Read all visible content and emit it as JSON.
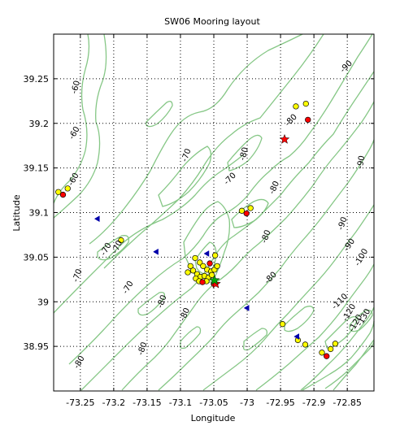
{
  "chart_data": {
    "type": "scatter",
    "title": "SW06 Mooring layout",
    "xlabel": "Longitude",
    "ylabel": "Latitude",
    "xlim": [
      -73.29,
      -72.81
    ],
    "ylim": [
      38.9,
      39.3
    ],
    "grid": true,
    "x_ticks": [
      -73.25,
      -73.2,
      -73.15,
      -73.1,
      -73.05,
      -73,
      -72.95,
      -72.9,
      -72.85
    ],
    "x_tick_labels": [
      "-73.25",
      "-73.2",
      "-73.15",
      "-73.1",
      "-73.05",
      "-73",
      "-72.95",
      "-72.9",
      "-72.85"
    ],
    "y_ticks": [
      38.95,
      39,
      39.05,
      39.1,
      39.15,
      39.2,
      39.25
    ],
    "y_tick_labels": [
      "38.95",
      "39",
      "39.05",
      "39.1",
      "39.15",
      "39.2",
      "39.25"
    ],
    "colors": {
      "contour": "#86c786",
      "yellow": "#ffff00",
      "red": "#ff0000",
      "blue": "#0000aa",
      "green_star": "#00aa00",
      "grid": "#000000"
    },
    "series": [
      {
        "marker": "yellow-circle",
        "points": [
          [
            -73.283,
            39.123
          ],
          [
            -73.269,
            39.127
          ],
          [
            -73.189,
            39.069
          ],
          [
            -72.927,
            39.219
          ],
          [
            -72.912,
            39.222
          ],
          [
            -73.008,
            39.102
          ],
          [
            -72.995,
            39.105
          ],
          [
            -72.947,
            38.975
          ],
          [
            -72.924,
            38.957
          ],
          [
            -72.913,
            38.952
          ],
          [
            -72.888,
            38.943
          ],
          [
            -72.875,
            38.947
          ],
          [
            -72.868,
            38.953
          ],
          [
            -73.078,
            39.049
          ],
          [
            -73.071,
            39.044
          ],
          [
            -73.066,
            39.04
          ],
          [
            -73.06,
            39.036
          ],
          [
            -73.054,
            39.034
          ],
          [
            -73.049,
            39.036
          ],
          [
            -73.045,
            39.04
          ],
          [
            -73.048,
            39.052
          ],
          [
            -73.085,
            39.04
          ],
          [
            -73.081,
            39.035
          ],
          [
            -73.089,
            39.033
          ],
          [
            -73.075,
            39.031
          ],
          [
            -73.07,
            39.028
          ],
          [
            -73.064,
            39.029
          ],
          [
            -73.058,
            39.027
          ],
          [
            -73.053,
            39.03
          ],
          [
            -73.077,
            39.026
          ],
          [
            -73.072,
            39.023
          ],
          [
            -73.061,
            39.023
          ]
        ]
      },
      {
        "marker": "red-circle",
        "points": [
          [
            -73.276,
            39.12
          ],
          [
            -72.909,
            39.204
          ],
          [
            -73.001,
            39.099
          ],
          [
            -72.881,
            38.939
          ],
          [
            -73.056,
            39.043
          ],
          [
            -73.067,
            39.022
          ],
          [
            -73.05,
            39.02
          ]
        ]
      },
      {
        "marker": "red-star",
        "points": [
          [
            -72.944,
            39.182
          ],
          [
            -73.047,
            39.02
          ]
        ]
      },
      {
        "marker": "green-star",
        "points": [
          [
            -73.049,
            39.024
          ]
        ]
      },
      {
        "marker": "blue-triangle",
        "points": [
          [
            -73.225,
            39.093
          ],
          [
            -73.137,
            39.056
          ],
          [
            -73.061,
            39.054
          ],
          [
            -73.001,
            38.993
          ],
          [
            -72.926,
            38.961
          ]
        ]
      }
    ],
    "contour_labels": [
      "-60",
      "-60",
      "-60",
      "-70",
      "-70",
      "-70",
      "-70",
      "-70",
      "-70",
      "-80",
      "-80",
      "-80",
      "-80",
      "-80",
      "-80",
      "-80",
      "-80",
      "-80",
      "-90",
      "-90",
      "-90",
      "-90",
      "-100",
      "-110",
      "-120",
      "-120",
      "-130"
    ]
  }
}
